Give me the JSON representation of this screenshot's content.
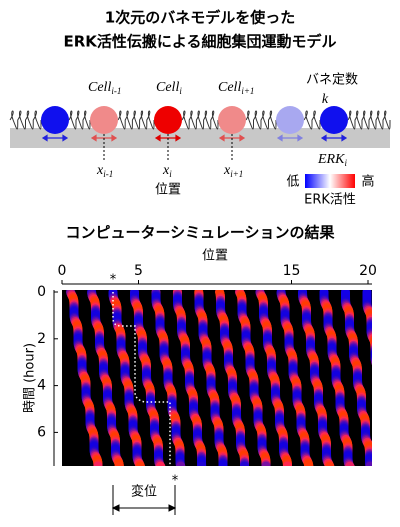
{
  "title": [
    "1次元のバネモデルを使った",
    "ERK活性伝搬による細胞集団運動モデル"
  ],
  "model": {
    "cells": [
      {
        "name": "Cell",
        "sub": "i-1"
      },
      {
        "name": "Cell",
        "sub": "i"
      },
      {
        "name": "Cell",
        "sub": "i+1"
      }
    ],
    "spring_label": "バネ定数",
    "spring_symbol": "k",
    "positions": [
      {
        "name": "x",
        "sub": "i-1"
      },
      {
        "name": "x",
        "sub": "i"
      },
      {
        "name": "x",
        "sub": "i+1"
      }
    ],
    "position_label": "位置",
    "colorbar": {
      "name": "ERK",
      "sub": "i",
      "low": "低",
      "high": "高",
      "label": "ERK活性"
    }
  },
  "simulation": {
    "title": "コンピューターシミュレーションの結果",
    "x_label": "位置",
    "xticks": [
      0,
      5,
      15,
      20
    ],
    "y_label": "時間 (hour)",
    "yticks": [
      0,
      2,
      4,
      6
    ],
    "markers": [
      "*",
      "*"
    ],
    "displacement_label": "変位"
  }
}
